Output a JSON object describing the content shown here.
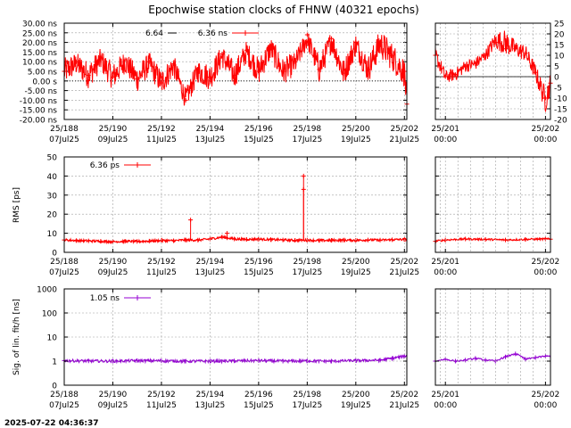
{
  "title": "Epochwise station clocks of FHNW (40321 epochs)",
  "timestamp": "2025-07-22 04:36:37",
  "colors": {
    "clock": "#ff0000",
    "rms": "#ff0000",
    "sig": "#9400d3",
    "grid": "#a0a0a0",
    "axis": "#000000"
  },
  "x_ticks": [
    {
      "doy": "25/188",
      "date": "07Jul25"
    },
    {
      "doy": "25/190",
      "date": "09Jul25"
    },
    {
      "doy": "25/192",
      "date": "11Jul25"
    },
    {
      "doy": "25/194",
      "date": "13Jul25"
    },
    {
      "doy": "25/196",
      "date": "15Jul25"
    },
    {
      "doy": "25/198",
      "date": "17Jul25"
    },
    {
      "doy": "25/200",
      "date": "19Jul25"
    },
    {
      "doy": "25/202",
      "date": "21Jul25"
    }
  ],
  "x_ticks_zoom": [
    {
      "doy": "25/201",
      "time": "00:00"
    },
    {
      "doy": "25/202",
      "time": "00:00"
    }
  ],
  "chart_data": [
    {
      "type": "line",
      "panel": "clock",
      "xlim": [
        188,
        202.1
      ],
      "x_unit": "day of year 2025",
      "ylim": [
        -20,
        30
      ],
      "ylabel": "",
      "y_ticks": [
        "30.00 ns",
        "25.00 ns",
        "20.00 ns",
        "15.00 ns",
        "10.00 ns",
        "5.00 ns",
        "0.00  s",
        "-5.00 ns",
        "-10.00 ns",
        "-15.00 ns",
        "-20.00 ns"
      ],
      "y_tick_values": [
        30,
        25,
        20,
        15,
        10,
        5,
        0,
        -5,
        -10,
        -15,
        -20
      ],
      "legend": [
        "6.64",
        "6.36 ns"
      ],
      "series": [
        {
          "x": [
            188.0,
            188.5,
            189.0,
            189.5,
            190.0,
            190.5,
            191.0,
            191.5,
            192.0,
            192.5,
            193.0,
            193.5,
            194.0,
            194.5,
            195.0,
            195.5,
            196.0,
            196.5,
            197.0,
            197.5,
            198.0,
            198.5,
            199.0,
            199.5,
            200.0,
            200.5,
            201.0,
            201.5,
            202.0,
            202.1
          ],
          "y": [
            5,
            10,
            3,
            12,
            2,
            11,
            1,
            10,
            -1,
            9,
            -10,
            6,
            2,
            14,
            3,
            16,
            5,
            18,
            5,
            10,
            24,
            6,
            22,
            4,
            20,
            6,
            20,
            13,
            5,
            -12
          ],
          "y_min": [
            -2,
            3,
            -4,
            5,
            -5,
            4,
            -6,
            3,
            -8,
            2,
            -15,
            -1,
            -5,
            7,
            -4,
            9,
            -2,
            11,
            -2,
            3,
            17,
            -1,
            15,
            -3,
            13,
            -1,
            12,
            5,
            -3,
            -17
          ],
          "y_max": [
            12,
            15,
            10,
            17,
            9,
            16,
            8,
            15,
            6,
            14,
            -4,
            11,
            9,
            19,
            10,
            21,
            12,
            23,
            12,
            15,
            27,
            13,
            27,
            11,
            25,
            13,
            27,
            20,
            12,
            -6
          ]
        }
      ]
    },
    {
      "type": "line",
      "panel": "clock-zoom",
      "xlim": [
        200.9,
        202.05
      ],
      "ylim": [
        -20,
        25
      ],
      "y_ticks": [
        "25",
        "20",
        "15",
        "10",
        "5",
        "0",
        "-5",
        "-10",
        "-15",
        "-20"
      ],
      "y_tick_values": [
        25,
        20,
        15,
        10,
        5,
        0,
        -5,
        -10,
        -15,
        -20
      ],
      "series": [
        {
          "x": [
            200.9,
            201.0,
            201.1,
            201.2,
            201.3,
            201.4,
            201.5,
            201.6,
            201.7,
            201.8,
            201.9,
            202.0,
            202.05
          ],
          "y": [
            10,
            0,
            1,
            5,
            6,
            10,
            16,
            13,
            13,
            11,
            2,
            -10,
            -3
          ],
          "y_min": [
            6,
            -3,
            -2,
            2,
            3,
            7,
            13,
            10,
            9,
            7,
            -2,
            -17,
            -8
          ],
          "y_max": [
            14,
            3,
            4,
            8,
            9,
            13,
            21,
            22,
            17,
            15,
            6,
            -5,
            2
          ]
        }
      ]
    },
    {
      "type": "line",
      "panel": "rms",
      "xlim": [
        188,
        202.1
      ],
      "ylim": [
        0,
        50
      ],
      "ylabel": "RMS [ps]",
      "y_ticks": [
        "50",
        "40",
        "30",
        "20",
        "10",
        "0"
      ],
      "y_tick_values": [
        50,
        40,
        30,
        20,
        10,
        0
      ],
      "legend": [
        "6.36 ps"
      ],
      "series": [
        {
          "x": [
            188.0,
            188.5,
            189.0,
            189.5,
            190.0,
            190.5,
            191.0,
            191.5,
            192.0,
            192.5,
            193.0,
            193.5,
            194.0,
            194.5,
            195.0,
            195.5,
            196.0,
            196.5,
            197.0,
            197.5,
            198.0,
            198.5,
            199.0,
            199.5,
            200.0,
            200.5,
            201.0,
            201.5,
            202.0
          ],
          "y": [
            6.5,
            6.2,
            6.0,
            5.8,
            5.6,
            5.8,
            5.7,
            5.9,
            6.2,
            6.1,
            6.5,
            6.4,
            7.0,
            8.0,
            7.0,
            6.8,
            6.9,
            6.7,
            6.5,
            6.3,
            6.4,
            6.2,
            6.3,
            6.4,
            6.3,
            6.5,
            6.4,
            6.6,
            6.8
          ]
        }
      ],
      "spikes": [
        {
          "x": 193.2,
          "y": 17
        },
        {
          "x": 194.7,
          "y": 10
        },
        {
          "x": 197.85,
          "y": 40
        },
        {
          "x": 197.85,
          "y": 33
        }
      ]
    },
    {
      "type": "line",
      "panel": "rms-zoom",
      "xlim": [
        200.9,
        202.05
      ],
      "ylim": [
        0,
        50
      ],
      "series": [
        {
          "x": [
            200.9,
            201.0,
            201.2,
            201.4,
            201.6,
            201.8,
            202.0,
            202.05
          ],
          "y": [
            5.8,
            6.5,
            7.0,
            6.8,
            6.5,
            6.8,
            7.0,
            6.9
          ]
        }
      ]
    },
    {
      "type": "line",
      "panel": "sigma",
      "xlim": [
        188,
        202.1
      ],
      "ylim": [
        0,
        1000
      ],
      "log_scale_y": true,
      "ylabel": "Sig. of lin. fit/h [ns]",
      "y_ticks": [
        "1000",
        "100",
        "10",
        "1",
        "0"
      ],
      "y_tick_values": [
        1000,
        100,
        10,
        1,
        0.1
      ],
      "legend": [
        "1.05 ns"
      ],
      "series": [
        {
          "x": [
            188.0,
            189.0,
            190.0,
            191.0,
            192.0,
            193.0,
            194.0,
            195.0,
            196.0,
            197.0,
            198.0,
            199.0,
            200.0,
            201.0,
            201.5,
            202.0
          ],
          "y": [
            1.05,
            1.02,
            1.0,
            1.05,
            1.03,
            1.0,
            1.0,
            1.02,
            1.05,
            1.0,
            1.02,
            1.0,
            1.05,
            1.1,
            1.3,
            1.6
          ]
        }
      ]
    },
    {
      "type": "line",
      "panel": "sigma-zoom",
      "xlim": [
        200.9,
        202.05
      ],
      "ylim": [
        0,
        1000
      ],
      "log_scale_y": true,
      "series": [
        {
          "x": [
            200.9,
            201.0,
            201.1,
            201.2,
            201.3,
            201.4,
            201.5,
            201.6,
            201.7,
            201.8,
            201.9,
            202.0
          ],
          "y": [
            1.0,
            1.2,
            1.0,
            1.1,
            1.3,
            1.1,
            1.0,
            1.5,
            2.0,
            1.2,
            1.4,
            1.6
          ]
        }
      ]
    }
  ]
}
